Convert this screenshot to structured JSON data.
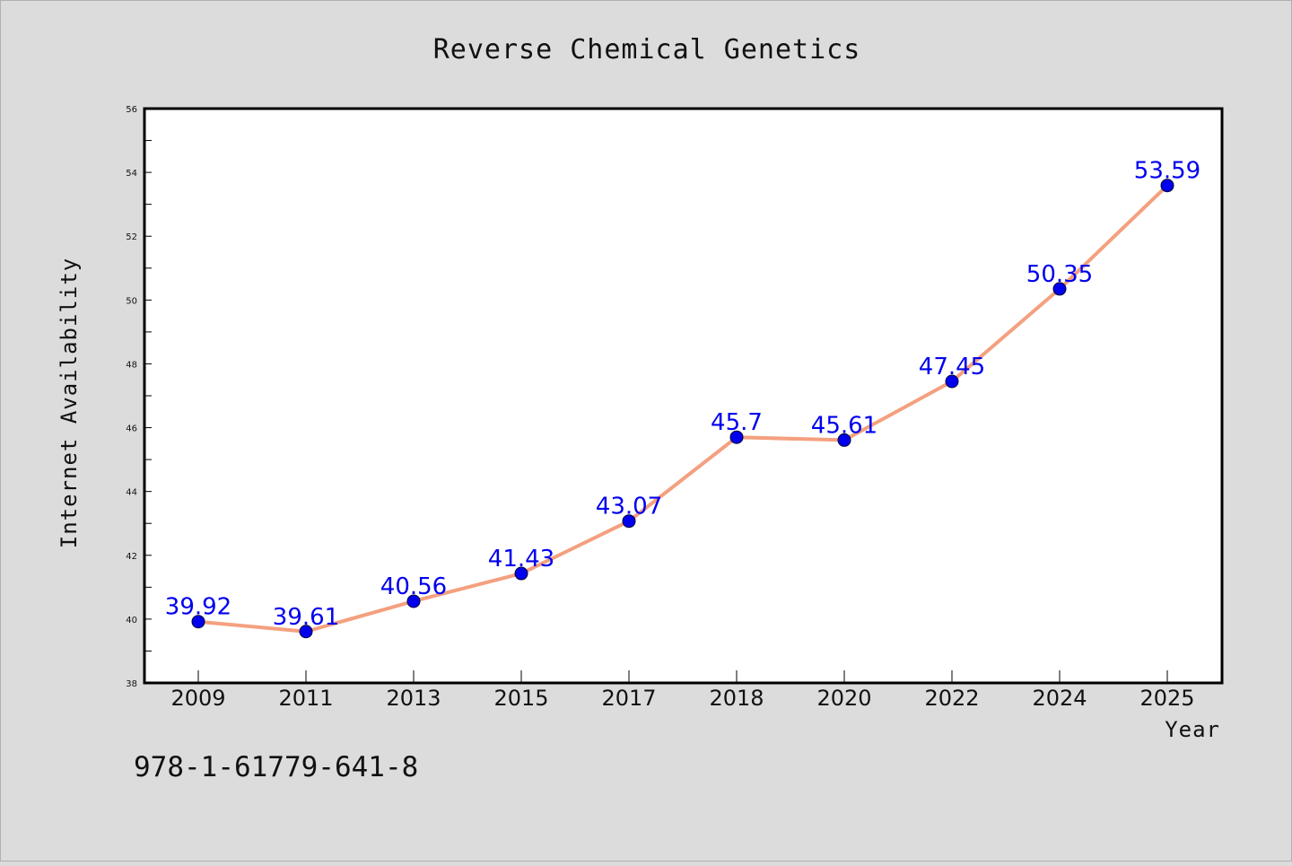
{
  "chart_data": {
    "type": "line",
    "title": "Reverse Chemical Genetics",
    "xlabel": "Year",
    "ylabel": "Internet Availability",
    "categories": [
      "2009",
      "2011",
      "2013",
      "2015",
      "2017",
      "2018",
      "2020",
      "2022",
      "2024",
      "2025"
    ],
    "series": [
      {
        "values": [
          39.92,
          39.61,
          40.56,
          41.43,
          43.07,
          45.7,
          45.61,
          47.45,
          50.35,
          53.59
        ],
        "labels": [
          "39.92",
          "39.61",
          "40.56",
          "41.43",
          "43.07",
          "45.7",
          "45.61",
          "47.45",
          "50.35",
          "53.59"
        ]
      }
    ],
    "ylim": [
      38,
      56
    ],
    "yticks": [
      38,
      40,
      42,
      44,
      46,
      48,
      50,
      52,
      54,
      56
    ],
    "grid": false,
    "legend": "none",
    "colors": {
      "line": "#f4a07f",
      "marker": "#0000ee",
      "data_label": "#0000ee",
      "plot_background": "#ffffff",
      "figure_background": "#dcdcdc"
    }
  },
  "annotation": {
    "text": "978-1-61779-641-8"
  }
}
